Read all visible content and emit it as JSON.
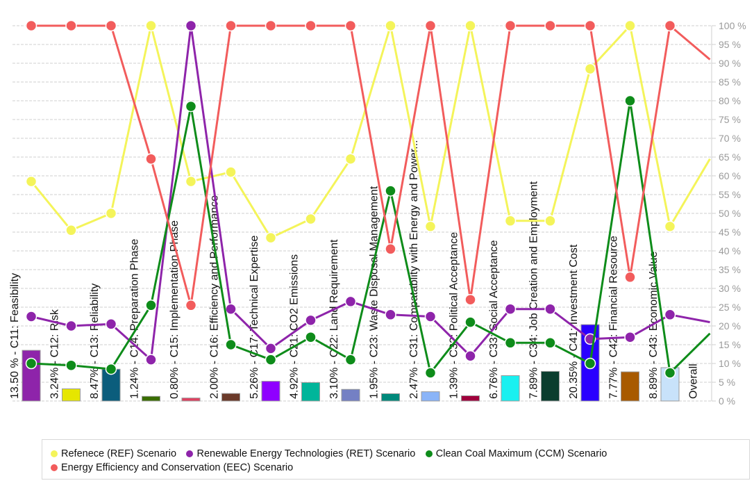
{
  "chart_data": {
    "type": "bar",
    "title": "",
    "xlabel": "",
    "ylabel": "",
    "ylim": [
      0,
      100
    ],
    "y_axis": {
      "position": "right",
      "ticks": [
        "0 %",
        "5 %",
        "10 %",
        "15 %",
        "20 %",
        "25 %",
        "30 %",
        "35 %",
        "40 %",
        "45 %",
        "50 %",
        "55 %",
        "60 %",
        "65 %",
        "70 %",
        "75 %",
        "80 %",
        "85 %",
        "90 %",
        "95 %",
        "100 %"
      ],
      "grid": true
    },
    "categories": [
      "C11: Feasibility",
      "C12: Risk",
      "C13: Reliability",
      "C14: Preparation Phase",
      "C15: Implementation Phase",
      "C16: Efficiency and Performance",
      "C17: Technical Expertise",
      "C21: CO2 Emissions",
      "C22: Land Requirement",
      "C23: Waste Disposal Management",
      "C31: Compatablity with Energy and Power...",
      "C32: Political Acceptance",
      "C33: Social Acceptance",
      "C34: Job Creation and Employment",
      "C41: Investment Cost",
      "C42: Financial Resource",
      "C43: Economic Value",
      "Overall"
    ],
    "bar_labels": [
      "13.50 %",
      "3.24%",
      "8.47%",
      "1.24%",
      "0.80%",
      "2.00%",
      "5.26%",
      "4.92%",
      "3.10%",
      "1.95%",
      "2.47%",
      "1.39%",
      "6.76%",
      "7.89%",
      "20.35%",
      "7.77%",
      "8.89%",
      ""
    ],
    "bar_values": [
      13.5,
      3.24,
      8.47,
      1.24,
      0.8,
      2.0,
      5.26,
      4.92,
      3.1,
      1.95,
      2.47,
      1.39,
      6.76,
      7.89,
      20.35,
      7.77,
      8.89,
      0
    ],
    "bar_colors": [
      "#8e24aa",
      "#e6e600",
      "#0b5d7c",
      "#3a6e00",
      "#e04060",
      "#6b3a2a",
      "#8f00ff",
      "#00b59a",
      "#7480c4",
      "#00897b",
      "#8ab4f8",
      "#a0003c",
      "#1af0f0",
      "#0b3d2e",
      "#2a00ff",
      "#a85a00",
      "#c8e2fa",
      "#ffffff"
    ],
    "series": [
      {
        "name": "Refenece (REF) Scenario",
        "color": "#f4f45a",
        "values": [
          58.5,
          45.5,
          50,
          100,
          58.5,
          61,
          43.5,
          48.5,
          64.5,
          100,
          46.5,
          100,
          48,
          48,
          88.5,
          100,
          46.5,
          64.5
        ]
      },
      {
        "name": "Renewable Energy Technologies (RET) Scenario",
        "color": "#8e24aa",
        "values": [
          22.5,
          20,
          20.5,
          11,
          100,
          24.5,
          14,
          21.5,
          26.5,
          23,
          22.5,
          12,
          24.5,
          24.5,
          16.5,
          17,
          23,
          21
        ]
      },
      {
        "name": "Clean Coal Maximum (CCM) Scenario",
        "color": "#0e8c1a",
        "values": [
          10,
          9.5,
          8.5,
          25.5,
          78.5,
          15,
          11,
          17,
          11,
          56,
          7.5,
          21,
          15.5,
          15.5,
          10,
          80,
          7.5,
          18
        ]
      },
      {
        "name": "Energy Efficiency and Conservation (EEC) Scenario",
        "color": "#f25c5c",
        "values": [
          100,
          100,
          100,
          64.5,
          25.5,
          100,
          100,
          100,
          100,
          40.5,
          100,
          27,
          100,
          100,
          100,
          33,
          100,
          91
        ]
      }
    ],
    "legend_placement": "bottom"
  },
  "legend": {
    "items": [
      {
        "label": "Refenece (REF) Scenario",
        "color": "#f4f45a"
      },
      {
        "label": "Renewable Energy Technologies (RET) Scenario",
        "color": "#8e24aa"
      },
      {
        "label": "Clean Coal Maximum (CCM) Scenario",
        "color": "#0e8c1a"
      },
      {
        "label": "Energy Efficiency and Conservation (EEC) Scenario",
        "color": "#f25c5c"
      }
    ]
  }
}
